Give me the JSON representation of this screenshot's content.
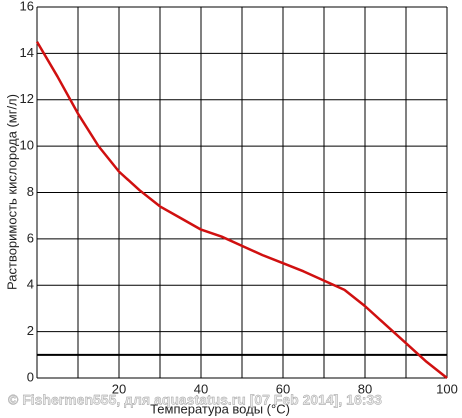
{
  "chart_data": {
    "type": "line",
    "x_label": "Температура воды  (°C)",
    "y_label": "Растворимость кислорода (мг/л)",
    "watermark": "© Fishermen555, для aquastatus.ru [07 Feb 2014], 16:33",
    "x": [
      0,
      5,
      10,
      15,
      20,
      25,
      30,
      35,
      40,
      45,
      50,
      55,
      60,
      65,
      70,
      75,
      80,
      85,
      90,
      95,
      100
    ],
    "series": [
      {
        "color": "#d01010",
        "values": [
          14.5,
          13.0,
          11.4,
          10.0,
          8.9,
          8.1,
          7.4,
          6.9,
          6.4,
          6.1,
          5.7,
          5.3,
          4.95,
          4.6,
          4.2,
          3.8,
          3.1,
          2.3,
          1.5,
          0.7,
          0
        ]
      }
    ],
    "xlim": [
      0,
      100
    ],
    "ylim": [
      0,
      16
    ],
    "xticks": [
      20,
      40,
      60,
      80,
      100
    ],
    "xgrid": [
      0,
      10,
      20,
      30,
      40,
      50,
      60,
      70,
      80,
      90,
      100
    ],
    "yticks": [
      0,
      2,
      4,
      6,
      8,
      10,
      12,
      14,
      16
    ],
    "hline": 1,
    "grid": true
  }
}
